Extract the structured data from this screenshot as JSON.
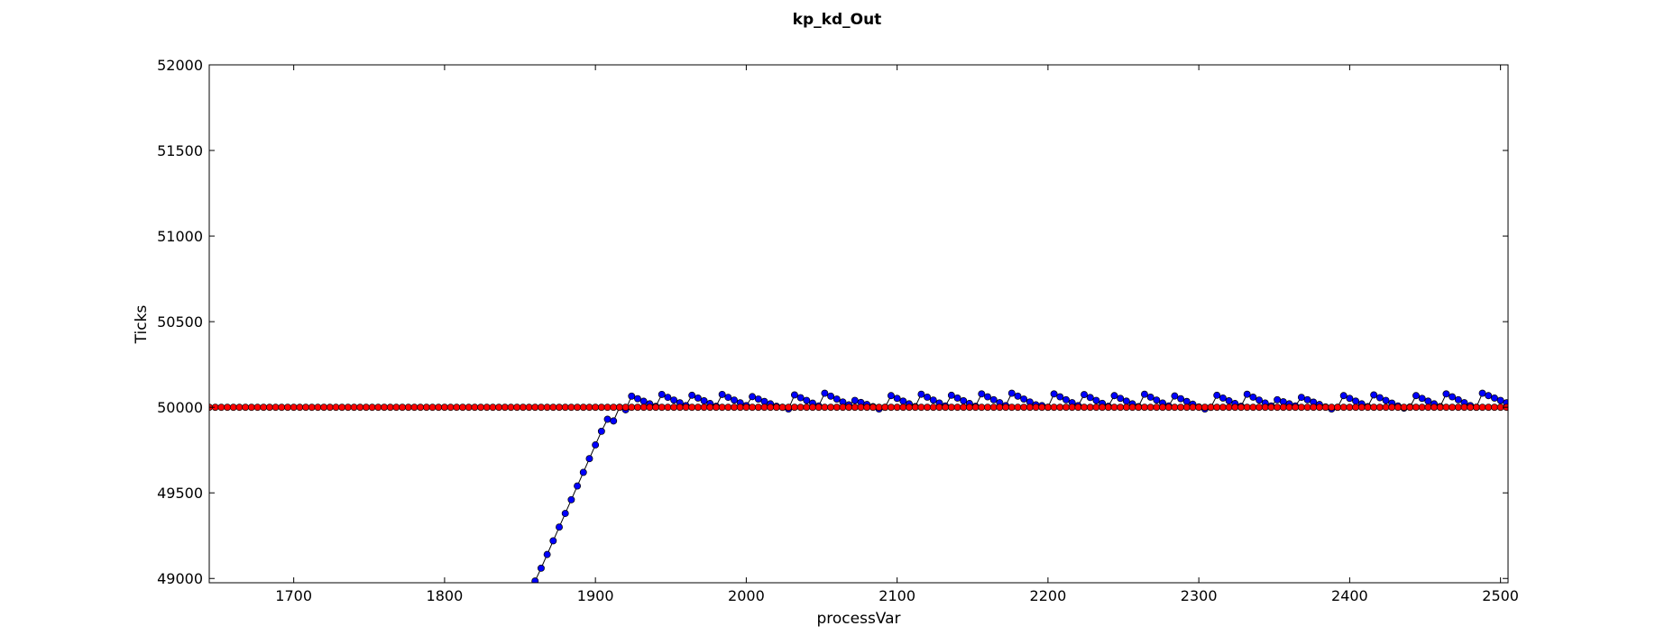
{
  "chart_data": {
    "type": "line",
    "title": "kp_kd_Out",
    "xlabel": "processVar",
    "ylabel": "Ticks",
    "xlim": [
      1644,
      2505
    ],
    "ylim": [
      48975,
      52000
    ],
    "x_ticks": [
      1700,
      1800,
      1900,
      2000,
      2100,
      2200,
      2300,
      2400,
      2500
    ],
    "y_ticks": [
      49000,
      49500,
      50000,
      50500,
      51000,
      51500,
      52000
    ],
    "grid": false,
    "colors": {
      "series_blue": "#0000ff",
      "series_red": "#ff0000",
      "line": "#000000"
    },
    "series": [
      {
        "color": "blue",
        "marker": "circle",
        "description": "rising ramp then sawtooth oscillation above 50000",
        "points": [
          [
            1860,
            48985
          ],
          [
            1864,
            49060
          ],
          [
            1868,
            49140
          ],
          [
            1872,
            49220
          ],
          [
            1876,
            49300
          ],
          [
            1880,
            49380
          ],
          [
            1884,
            49460
          ],
          [
            1888,
            49540
          ],
          [
            1892,
            49620
          ],
          [
            1896,
            49700
          ],
          [
            1900,
            49780
          ],
          [
            1904,
            49860
          ],
          [
            1908,
            49930
          ],
          [
            1912,
            49920
          ],
          [
            1916,
            50000
          ],
          [
            1920,
            49985
          ],
          [
            1924,
            50065
          ],
          [
            1928,
            50050
          ],
          [
            1932,
            50035
          ],
          [
            1936,
            50020
          ],
          [
            1940,
            50005
          ],
          [
            1944,
            50075
          ],
          [
            1948,
            50058
          ],
          [
            1952,
            50042
          ],
          [
            1956,
            50026
          ],
          [
            1960,
            50010
          ],
          [
            1964,
            50070
          ],
          [
            1968,
            50054
          ],
          [
            1972,
            50038
          ],
          [
            1976,
            50022
          ],
          [
            1980,
            50006
          ],
          [
            1984,
            50075
          ],
          [
            1988,
            50058
          ],
          [
            1992,
            50042
          ],
          [
            1996,
            50026
          ],
          [
            2000,
            50010
          ],
          [
            2004,
            50062
          ],
          [
            2008,
            50048
          ],
          [
            2012,
            50034
          ],
          [
            2016,
            50020
          ],
          [
            2020,
            50006
          ],
          [
            2024,
            50000
          ],
          [
            2028,
            49990
          ],
          [
            2032,
            50072
          ],
          [
            2036,
            50056
          ],
          [
            2040,
            50040
          ],
          [
            2044,
            50024
          ],
          [
            2048,
            50008
          ],
          [
            2052,
            50082
          ],
          [
            2056,
            50065
          ],
          [
            2060,
            50048
          ],
          [
            2064,
            50031
          ],
          [
            2068,
            50014
          ],
          [
            2072,
            50040
          ],
          [
            2076,
            50028
          ],
          [
            2080,
            50016
          ],
          [
            2084,
            50004
          ],
          [
            2088,
            49990
          ],
          [
            2092,
            50000
          ],
          [
            2096,
            50068
          ],
          [
            2100,
            50052
          ],
          [
            2104,
            50036
          ],
          [
            2108,
            50020
          ],
          [
            2112,
            50004
          ],
          [
            2116,
            50076
          ],
          [
            2120,
            50059
          ],
          [
            2124,
            50042
          ],
          [
            2128,
            50025
          ],
          [
            2132,
            50008
          ],
          [
            2136,
            50070
          ],
          [
            2140,
            50054
          ],
          [
            2144,
            50038
          ],
          [
            2148,
            50022
          ],
          [
            2152,
            50006
          ],
          [
            2156,
            50078
          ],
          [
            2160,
            50061
          ],
          [
            2164,
            50044
          ],
          [
            2168,
            50027
          ],
          [
            2172,
            50010
          ],
          [
            2176,
            50082
          ],
          [
            2180,
            50065
          ],
          [
            2184,
            50048
          ],
          [
            2188,
            50031
          ],
          [
            2192,
            50014
          ],
          [
            2196,
            50010
          ],
          [
            2200,
            50000
          ],
          [
            2204,
            50078
          ],
          [
            2208,
            50061
          ],
          [
            2212,
            50044
          ],
          [
            2216,
            50027
          ],
          [
            2220,
            50010
          ],
          [
            2224,
            50074
          ],
          [
            2228,
            50057
          ],
          [
            2232,
            50040
          ],
          [
            2236,
            50023
          ],
          [
            2240,
            50006
          ],
          [
            2244,
            50068
          ],
          [
            2248,
            50052
          ],
          [
            2252,
            50036
          ],
          [
            2256,
            50020
          ],
          [
            2260,
            50004
          ],
          [
            2264,
            50076
          ],
          [
            2268,
            50059
          ],
          [
            2272,
            50042
          ],
          [
            2276,
            50025
          ],
          [
            2280,
            50008
          ],
          [
            2284,
            50066
          ],
          [
            2288,
            50050
          ],
          [
            2292,
            50034
          ],
          [
            2296,
            50018
          ],
          [
            2300,
            50002
          ],
          [
            2304,
            49990
          ],
          [
            2308,
            50000
          ],
          [
            2312,
            50070
          ],
          [
            2316,
            50054
          ],
          [
            2320,
            50038
          ],
          [
            2324,
            50022
          ],
          [
            2328,
            50006
          ],
          [
            2332,
            50076
          ],
          [
            2336,
            50059
          ],
          [
            2340,
            50042
          ],
          [
            2344,
            50025
          ],
          [
            2348,
            50008
          ],
          [
            2352,
            50044
          ],
          [
            2356,
            50032
          ],
          [
            2360,
            50020
          ],
          [
            2364,
            50008
          ],
          [
            2368,
            50058
          ],
          [
            2372,
            50044
          ],
          [
            2376,
            50030
          ],
          [
            2380,
            50016
          ],
          [
            2384,
            50002
          ],
          [
            2388,
            49990
          ],
          [
            2392,
            50000
          ],
          [
            2396,
            50068
          ],
          [
            2400,
            50052
          ],
          [
            2404,
            50036
          ],
          [
            2408,
            50020
          ],
          [
            2412,
            50004
          ],
          [
            2416,
            50072
          ],
          [
            2420,
            50056
          ],
          [
            2424,
            50040
          ],
          [
            2428,
            50024
          ],
          [
            2432,
            50008
          ],
          [
            2436,
            49995
          ],
          [
            2440,
            50002
          ],
          [
            2444,
            50068
          ],
          [
            2448,
            50052
          ],
          [
            2452,
            50036
          ],
          [
            2456,
            50020
          ],
          [
            2460,
            50004
          ],
          [
            2464,
            50078
          ],
          [
            2468,
            50061
          ],
          [
            2472,
            50044
          ],
          [
            2476,
            50027
          ],
          [
            2480,
            50010
          ],
          [
            2484,
            50000
          ],
          [
            2488,
            50082
          ],
          [
            2492,
            50068
          ],
          [
            2496,
            50054
          ],
          [
            2500,
            50040
          ],
          [
            2504,
            50026
          ]
        ]
      },
      {
        "color": "red",
        "marker": "circle",
        "description": "setpoint constant at 50000",
        "x_start": 1644,
        "x_end": 2505,
        "x_step": 4,
        "y": 50000
      }
    ]
  }
}
